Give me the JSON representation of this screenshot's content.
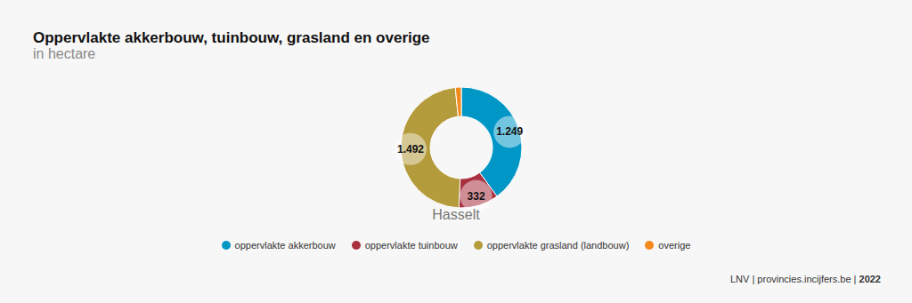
{
  "chart_data": {
    "type": "pie",
    "title": "Oppervlakte akkerbouw, tuinbouw, grasland en overige",
    "subtitle": "in hectare",
    "label": "Hasselt",
    "categories": [
      "oppervlakte akkerbouw",
      "oppervlakte tuinbouw",
      "oppervlakte grasland (landbouw)",
      "overige"
    ],
    "values": [
      1249,
      332,
      1492,
      50
    ],
    "value_labels": [
      "1.249",
      "332",
      "1.492",
      null
    ],
    "colors": [
      "#0097c6",
      "#a8303f",
      "#b49b3b",
      "#f28a1c"
    ],
    "data_labels": true,
    "legend": "bottom",
    "source": "LNV | provincies.incijfers.be",
    "year": "2022"
  }
}
